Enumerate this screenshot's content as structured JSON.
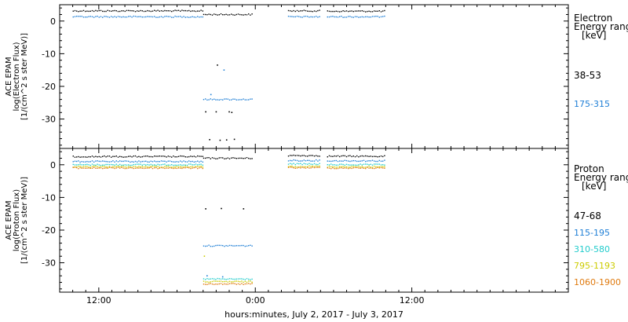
{
  "chart_data": [
    {
      "type": "scatter",
      "panel": "electron",
      "ylabel": [
        "ACE EPAM",
        "log(Electron Flux)",
        "[1/(cm^2 s ster MeV)]"
      ],
      "ylim": [
        -39,
        5
      ],
      "yticks": [
        0,
        -10,
        -20,
        -30
      ],
      "ytick_labels": [
        "0",
        "-10",
        "-20",
        "-30"
      ],
      "legend": {
        "title": [
          "Electron",
          "Energy ranges",
          "[keV]"
        ],
        "position": "right"
      },
      "series": [
        {
          "name": "38-53",
          "color": "#000000",
          "segments": [
            {
              "x": [
                -14.0,
                -4.0
              ],
              "y": 3.1
            },
            {
              "x": [
                -4.0,
                -0.2
              ],
              "y": 2.0
            },
            {
              "x": [
                2.5,
                5.0
              ],
              "y": 3.1
            },
            {
              "x": [
                5.5,
                10.0
              ],
              "y": 3.0
            }
          ],
          "points": [
            [
              -2.9,
              -13.5
            ],
            [
              -3.8,
              -27.8
            ],
            [
              -3.0,
              -27.8
            ],
            [
              -2.0,
              -27.8
            ],
            [
              -1.8,
              -28.0
            ],
            [
              -3.5,
              -36.3
            ],
            [
              -2.7,
              -36.5
            ],
            [
              -2.2,
              -36.4
            ],
            [
              -1.6,
              -36.2
            ]
          ]
        },
        {
          "name": "175-315",
          "color": "#1f7fd6",
          "segments": [
            {
              "x": [
                -14.0,
                -4.0
              ],
              "y": 1.3
            },
            {
              "x": [
                -4.0,
                -0.2
              ],
              "y": -24.0
            },
            {
              "x": [
                2.5,
                5.0
              ],
              "y": 1.3
            },
            {
              "x": [
                5.5,
                10.0
              ],
              "y": 1.3
            }
          ],
          "points": [
            [
              -2.4,
              -15.0
            ],
            [
              -3.4,
              -22.5
            ]
          ]
        }
      ]
    },
    {
      "type": "scatter",
      "panel": "proton",
      "ylabel": [
        "ACE EPAM",
        "log(Proton Flux)",
        "[1/(cm^2 s ster MeV)]"
      ],
      "ylim": [
        -39,
        5
      ],
      "yticks": [
        0,
        -10,
        -20,
        -30
      ],
      "ytick_labels": [
        "0",
        "-10",
        "-20",
        "-30"
      ],
      "legend": {
        "title": [
          "Proton",
          "Energy ranges",
          "[keV]"
        ],
        "position": "right"
      },
      "series": [
        {
          "name": "47-68",
          "color": "#000000",
          "segments": [
            {
              "x": [
                -14.0,
                -4.0
              ],
              "y": 2.5
            },
            {
              "x": [
                -4.0,
                -0.2
              ],
              "y": 2.0
            },
            {
              "x": [
                2.5,
                5.0
              ],
              "y": 2.8
            },
            {
              "x": [
                5.5,
                10.0
              ],
              "y": 2.6
            }
          ],
          "points": [
            [
              -3.8,
              -13.5
            ],
            [
              -2.6,
              -13.4
            ],
            [
              -0.9,
              -13.5
            ]
          ]
        },
        {
          "name": "115-195",
          "color": "#1f7fd6",
          "segments": [
            {
              "x": [
                -14.0,
                -4.0
              ],
              "y": 1.0
            },
            {
              "x": [
                -4.0,
                -0.2
              ],
              "y": -24.8
            },
            {
              "x": [
                2.5,
                5.0
              ],
              "y": 1.3
            },
            {
              "x": [
                5.5,
                10.0
              ],
              "y": 1.2
            }
          ],
          "points": [
            [
              -3.7,
              -34.0
            ],
            [
              -2.5,
              -34.3
            ]
          ]
        },
        {
          "name": "310-580",
          "color": "#22cccc",
          "segments": [
            {
              "x": [
                -14.0,
                -4.0
              ],
              "y": 0.0
            },
            {
              "x": [
                -4.0,
                -0.2
              ],
              "y": -35.0
            },
            {
              "x": [
                2.5,
                5.0
              ],
              "y": 0.2
            },
            {
              "x": [
                5.5,
                10.0
              ],
              "y": 0.0
            }
          ],
          "points": []
        },
        {
          "name": "795-1193",
          "color": "#cccc00",
          "segments": [
            {
              "x": [
                -14.0,
                -4.0
              ],
              "y": -0.6
            },
            {
              "x": [
                -4.0,
                -0.2
              ],
              "y": -35.8
            },
            {
              "x": [
                2.5,
                5.0
              ],
              "y": -0.5
            },
            {
              "x": [
                5.5,
                10.0
              ],
              "y": -0.6
            }
          ],
          "points": [
            [
              -3.9,
              -28.0
            ]
          ]
        },
        {
          "name": "1060-1900",
          "color": "#e07b10",
          "segments": [
            {
              "x": [
                -14.0,
                -4.0
              ],
              "y": -1.0
            },
            {
              "x": [
                -4.0,
                -0.2
              ],
              "y": -36.5
            },
            {
              "x": [
                2.5,
                5.0
              ],
              "y": -0.9
            },
            {
              "x": [
                5.5,
                10.0
              ],
              "y": -1.0
            }
          ],
          "points": []
        }
      ]
    }
  ],
  "x_axis": {
    "xlim": [
      -15,
      24
    ],
    "ticks": [
      -12,
      0,
      12
    ],
    "tick_labels": [
      "12:00",
      "0:00",
      "12:00"
    ],
    "minor_tick_step": 1,
    "title": "hours:minutes, July  2, 2017 - July  3, 2017"
  }
}
